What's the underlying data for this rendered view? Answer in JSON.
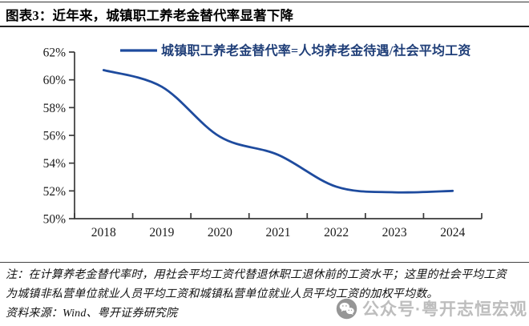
{
  "header": {
    "title": "图表3：近年来，城镇职工养老金替代率显著下降"
  },
  "chart_data": {
    "type": "line",
    "legend": "城镇职工养老金替代率=人均养老金待遇/社会平均工资",
    "legend_position": "top-center",
    "categories": [
      "2018",
      "2019",
      "2020",
      "2021",
      "2022",
      "2023",
      "2024"
    ],
    "series": [
      {
        "name": "城镇职工养老金替代率=人均养老金待遇/社会平均工资",
        "values": [
          60.7,
          59.5,
          55.9,
          54.6,
          52.3,
          51.9,
          52.0
        ]
      }
    ],
    "xlabel": "",
    "ylabel": "",
    "ylim": [
      50,
      62
    ],
    "ytick_step": 2,
    "ytick_labels": [
      "50%",
      "52%",
      "54%",
      "56%",
      "58%",
      "60%",
      "62%"
    ],
    "grid": false,
    "colors": {
      "line": "#1e4b9e",
      "legend_text": "#1f3e78",
      "axis": "#3a3a3a",
      "tick_label": "#1a1a1a"
    }
  },
  "notes": {
    "line1": "注：在计算养老金替代率时，用社会平均工资代替退休职工退休前的工资水平；这里的社会平均工资",
    "line2": "为城镇非私营单位就业人员平均工资和城镇私营单位就业人员平均工资的加权平均数。",
    "source": "资料来源：Wind、粤开证券研究院"
  },
  "watermark": {
    "icon": "wechat-icon",
    "text": "公众号·粤开志恒宏观"
  }
}
